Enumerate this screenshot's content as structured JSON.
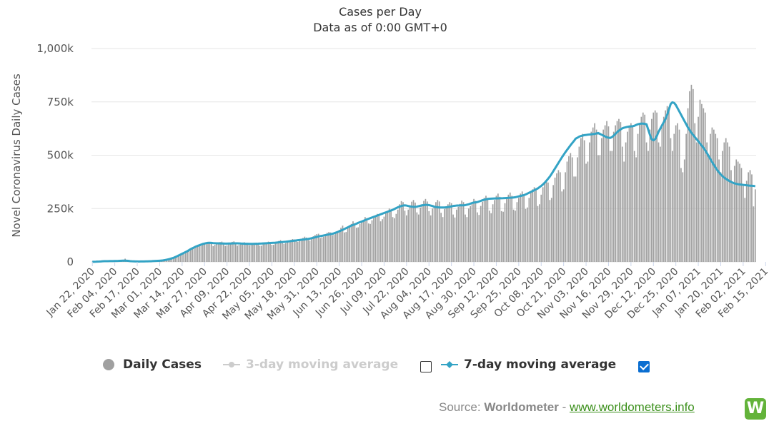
{
  "chart_data": {
    "type": "bar",
    "title": "Cases per Day",
    "subtitle": "Data as of 0:00 GMT+0",
    "ylabel": "Novel Coronavirus Daily Cases",
    "xlabel": "",
    "ylim": [
      0,
      1000000
    ],
    "y_ticks": [
      "0",
      "250k",
      "500k",
      "750k",
      "1,000k"
    ],
    "y_tick_values": [
      0,
      250000,
      500000,
      750000,
      1000000
    ],
    "x_ticks": [
      "Jan 22, 2020",
      "Feb 04, 2020",
      "Feb 17, 2020",
      "Mar 01, 2020",
      "Mar 14, 2020",
      "Mar 27, 2020",
      "Apr 09, 2020",
      "Apr 22, 2020",
      "May 05, 2020",
      "May 18, 2020",
      "May 31, 2020",
      "Jun 13, 2020",
      "Jun 26, 2020",
      "Jul 09, 2020",
      "Jul 22, 2020",
      "Aug 04, 2020",
      "Aug 17, 2020",
      "Aug 30, 2020",
      "Sep 12, 2020",
      "Sep 25, 2020",
      "Oct 08, 2020",
      "Oct 21, 2020",
      "Nov 03, 2020",
      "Nov 16, 2020",
      "Nov 29, 2020",
      "Dec 12, 2020",
      "Dec 25, 2020",
      "Jan 07, 2021",
      "Jan 20, 2021",
      "Feb 02, 2021",
      "Feb 15, 2021"
    ],
    "grid": true,
    "legend_position": "bottom",
    "colors": {
      "bars": "#a0a0a0",
      "line": "#33a3c5",
      "grid": "#e6e6e6"
    },
    "series": [
      {
        "name": "Daily Cases",
        "type": "bar",
        "daily_values_by_week": [
          [
            600,
            400,
            700,
            800,
            1500,
            2000,
            2100
          ],
          [
            2600,
            3200,
            3900,
            3700,
            3100,
            4000,
            3900
          ],
          [
            3700,
            3200,
            3000,
            2400,
            5200,
            15100,
            6400
          ],
          [
            2000,
            2100,
            1900,
            1800,
            1300,
            1700,
            1900
          ],
          [
            2100,
            1900,
            2200,
            2400,
            2900,
            3200,
            3600
          ],
          [
            4000,
            4200,
            4500,
            3700,
            5000,
            6000,
            7500
          ],
          [
            9000,
            11000,
            12500,
            15000,
            16000,
            18000,
            22000
          ],
          [
            25000,
            28000,
            33000,
            37000,
            41000,
            47000,
            50000
          ],
          [
            58000,
            62000,
            65000,
            68000,
            73000,
            77000,
            80000
          ],
          [
            82000,
            85000,
            88000,
            91000,
            94000,
            92000,
            86000
          ],
          [
            74000,
            80000,
            88000,
            91000,
            93000,
            95000,
            90000
          ],
          [
            75000,
            78000,
            82000,
            88000,
            94000,
            96000,
            84000
          ],
          [
            76000,
            80000,
            87000,
            90000,
            92000,
            85000,
            81000
          ],
          [
            78000,
            85000,
            87000,
            86000,
            90000,
            84000,
            76000
          ],
          [
            76000,
            82000,
            86000,
            89000,
            95000,
            93000,
            80000
          ],
          [
            80000,
            89000,
            93000,
            98000,
            102000,
            96000,
            84000
          ],
          [
            88000,
            95000,
            100000,
            103000,
            107000,
            105000,
            100000
          ],
          [
            94000,
            105000,
            108000,
            112000,
            118000,
            114000,
            102000
          ],
          [
            100000,
            115000,
            120000,
            126000,
            130000,
            132000,
            112000
          ],
          [
            115000,
            118000,
            128000,
            136000,
            140000,
            138000,
            125000
          ],
          [
            128000,
            135000,
            142000,
            150000,
            160000,
            170000,
            138000
          ],
          [
            140000,
            160000,
            172000,
            178000,
            190000,
            180000,
            160000
          ],
          [
            162000,
            178000,
            188000,
            196000,
            210000,
            205000,
            180000
          ],
          [
            178000,
            195000,
            205000,
            216000,
            225000,
            220000,
            190000
          ],
          [
            200000,
            212000,
            228000,
            237000,
            250000,
            240000,
            210000
          ],
          [
            205000,
            225000,
            245000,
            270000,
            285000,
            280000,
            240000
          ],
          [
            218000,
            245000,
            265000,
            282000,
            290000,
            278000,
            232000
          ],
          [
            222000,
            255000,
            270000,
            286000,
            295000,
            283000,
            238000
          ],
          [
            218000,
            250000,
            262000,
            280000,
            290000,
            283000,
            230000
          ],
          [
            210000,
            248000,
            260000,
            270000,
            280000,
            275000,
            222000
          ],
          [
            208000,
            245000,
            258000,
            272000,
            287000,
            280000,
            222000
          ],
          [
            210000,
            250000,
            262000,
            280000,
            295000,
            286000,
            232000
          ],
          [
            220000,
            262000,
            282000,
            300000,
            310000,
            300000,
            240000
          ],
          [
            228000,
            270000,
            290000,
            310000,
            320000,
            305000,
            238000
          ],
          [
            235000,
            275000,
            295000,
            315000,
            325000,
            310000,
            245000
          ],
          [
            240000,
            280000,
            300000,
            320000,
            330000,
            315000,
            248000
          ],
          [
            255000,
            300000,
            325000,
            340000,
            350000,
            338000,
            262000
          ],
          [
            270000,
            315000,
            350000,
            368000,
            385000,
            372000,
            290000
          ],
          [
            300000,
            360000,
            395000,
            415000,
            430000,
            420000,
            330000
          ],
          [
            340000,
            420000,
            470000,
            495000,
            510000,
            490000,
            400000
          ],
          [
            400000,
            490000,
            540000,
            580000,
            600000,
            570000,
            460000
          ],
          [
            470000,
            560000,
            610000,
            630000,
            650000,
            620000,
            500000
          ],
          [
            500000,
            580000,
            620000,
            640000,
            660000,
            635000,
            520000
          ],
          [
            520000,
            610000,
            640000,
            660000,
            670000,
            655000,
            540000
          ],
          [
            470000,
            560000,
            610000,
            640000,
            650000,
            640000,
            520000
          ],
          [
            490000,
            600000,
            650000,
            680000,
            700000,
            690000,
            560000
          ],
          [
            520000,
            620000,
            670000,
            700000,
            710000,
            700000,
            560000
          ],
          [
            540000,
            640000,
            680000,
            710000,
            730000,
            725000,
            580000
          ],
          [
            520000,
            600000,
            640000,
            650000,
            620000,
            440000,
            420000
          ],
          [
            480000,
            600000,
            720000,
            800000,
            830000,
            810000,
            650000
          ],
          [
            560000,
            680000,
            760000,
            740000,
            720000,
            700000,
            560000
          ],
          [
            500000,
            600000,
            630000,
            620000,
            600000,
            580000,
            480000
          ],
          [
            420000,
            520000,
            560000,
            580000,
            560000,
            540000,
            430000
          ],
          [
            370000,
            450000,
            480000,
            470000,
            460000,
            440000,
            360000
          ],
          [
            300000,
            380000,
            420000,
            430000,
            410000,
            260000,
            340000
          ]
        ]
      },
      {
        "name": "3-day moving average",
        "type": "line",
        "visible": false
      },
      {
        "name": "7-day moving average",
        "type": "line",
        "visible": true,
        "values_by_week": [
          [
            400,
            600,
            800,
            1200,
            1500,
            2000,
            2800
          ],
          [
            3200,
            3300,
            3500,
            3600,
            3700,
            3800,
            4100
          ],
          [
            4300,
            4500,
            4900,
            5500,
            6000,
            5800,
            5500
          ],
          [
            4500,
            3500,
            2800,
            2500,
            2100,
            1900,
            1800
          ],
          [
            1900,
            2000,
            2100,
            2300,
            2500,
            2800,
            3100
          ],
          [
            3600,
            4000,
            4500,
            5000,
            5600,
            6200,
            7000
          ],
          [
            8500,
            10000,
            12000,
            14000,
            16500,
            19000,
            22500
          ],
          [
            26000,
            30000,
            34000,
            38000,
            42000,
            46000,
            50000
          ],
          [
            55000,
            60000,
            64000,
            68000,
            72000,
            75000,
            78000
          ],
          [
            81000,
            84000,
            86000,
            88000,
            89000,
            89500,
            89000
          ],
          [
            88000,
            87500,
            87000,
            86800,
            86500,
            86300,
            86000
          ],
          [
            85800,
            85900,
            86000,
            86200,
            86500,
            86800,
            87000
          ],
          [
            86800,
            86500,
            86000,
            85700,
            85300,
            85000,
            84800
          ],
          [
            84600,
            84500,
            84600,
            84800,
            85000,
            85300,
            85800
          ],
          [
            86000,
            86500,
            87000,
            87500,
            88000,
            88500,
            89000
          ],
          [
            89500,
            90000,
            90800,
            91500,
            92300,
            93000,
            93800
          ],
          [
            94500,
            95500,
            96500,
            97500,
            98500,
            99500,
            100500
          ],
          [
            101500,
            102500,
            103500,
            104500,
            105500,
            106500,
            107500
          ],
          [
            109000,
            111000,
            113000,
            115000,
            117000,
            119000,
            121000
          ],
          [
            122000,
            124000,
            125500,
            127000,
            128500,
            130000,
            131500
          ],
          [
            134000,
            137000,
            140000,
            143000,
            147000,
            150000,
            154000
          ],
          [
            158000,
            162000,
            166000,
            170000,
            173000,
            176000,
            179000
          ],
          [
            183000,
            186000,
            189000,
            192000,
            196000,
            199000,
            202000
          ],
          [
            205000,
            208000,
            211000,
            214000,
            217000,
            220000,
            223000
          ],
          [
            226000,
            229000,
            232000,
            235000,
            238000,
            241000,
            244000
          ],
          [
            248000,
            252000,
            256000,
            259000,
            262000,
            264000,
            265000
          ],
          [
            264000,
            262000,
            260000,
            259000,
            258000,
            258000,
            259000
          ],
          [
            261000,
            263000,
            265000,
            266000,
            267000,
            267000,
            266000
          ],
          [
            264000,
            262000,
            259000,
            257000,
            256000,
            255000,
            255000
          ],
          [
            255000,
            255000,
            256000,
            257000,
            258000,
            260000,
            262000
          ],
          [
            263000,
            264000,
            264000,
            265000,
            265000,
            265000,
            266000
          ],
          [
            268000,
            270000,
            273000,
            276000,
            278000,
            279000,
            280000
          ],
          [
            283000,
            286000,
            289000,
            291000,
            293000,
            295000,
            296000
          ],
          [
            296500,
            297000,
            297300,
            297500,
            297800,
            298000,
            298200
          ],
          [
            298500,
            299000,
            299500,
            300000,
            300500,
            301000,
            302000
          ],
          [
            303000,
            305000,
            307000,
            309000,
            311000,
            313000,
            316000
          ],
          [
            320000,
            324000,
            328000,
            332000,
            336000,
            340000,
            344000
          ],
          [
            350000,
            356000,
            363000,
            371000,
            380000,
            390000,
            400000
          ],
          [
            412000,
            425000,
            438000,
            451000,
            464000,
            477000,
            490000
          ],
          [
            502000,
            514000,
            525000,
            536000,
            547000,
            557000,
            567000
          ],
          [
            578000,
            582000,
            587000,
            590000,
            592000,
            594000,
            595000
          ],
          [
            596000,
            597000,
            598000,
            599000,
            600000,
            602000,
            604000
          ],
          [
            600000,
            596000,
            592000,
            588000,
            584000,
            582000,
            581000
          ],
          [
            585000,
            592000,
            600000,
            608000,
            615000,
            621000,
            626000
          ],
          [
            629000,
            631000,
            633000,
            634000,
            635000,
            636000,
            638000
          ],
          [
            642000,
            645000,
            647000,
            648000,
            648000,
            647000,
            645000
          ],
          [
            620000,
            595000,
            575000,
            570000,
            575000,
            590000,
            610000
          ],
          [
            625000,
            640000,
            655000,
            670000,
            690000,
            715000,
            740000
          ],
          [
            748000,
            745000,
            735000,
            720000,
            705000,
            690000,
            675000
          ],
          [
            660000,
            645000,
            630000,
            618000,
            605000,
            595000,
            585000
          ],
          [
            575000,
            565000,
            555000,
            545000,
            535000,
            523000,
            510000
          ],
          [
            496000,
            482000,
            468000,
            455000,
            442000,
            430000,
            420000
          ],
          [
            410000,
            402000,
            395000,
            389000,
            384000,
            379000,
            375000
          ],
          [
            371000,
            368000,
            366000,
            364000,
            363000,
            362000,
            361000
          ],
          [
            360000,
            359000,
            358000,
            357000,
            357000,
            356000,
            355000
          ]
        ]
      }
    ]
  },
  "legend": {
    "daily": "Daily Cases",
    "ma3": "3-day moving average",
    "ma7": "7-day moving average",
    "ma3_checked": false,
    "ma7_checked": true
  },
  "source": {
    "prefix": "Source: ",
    "name": "Worldometer",
    "sep": " - ",
    "link": "www.worldometers.info",
    "logo_letter": "W"
  }
}
